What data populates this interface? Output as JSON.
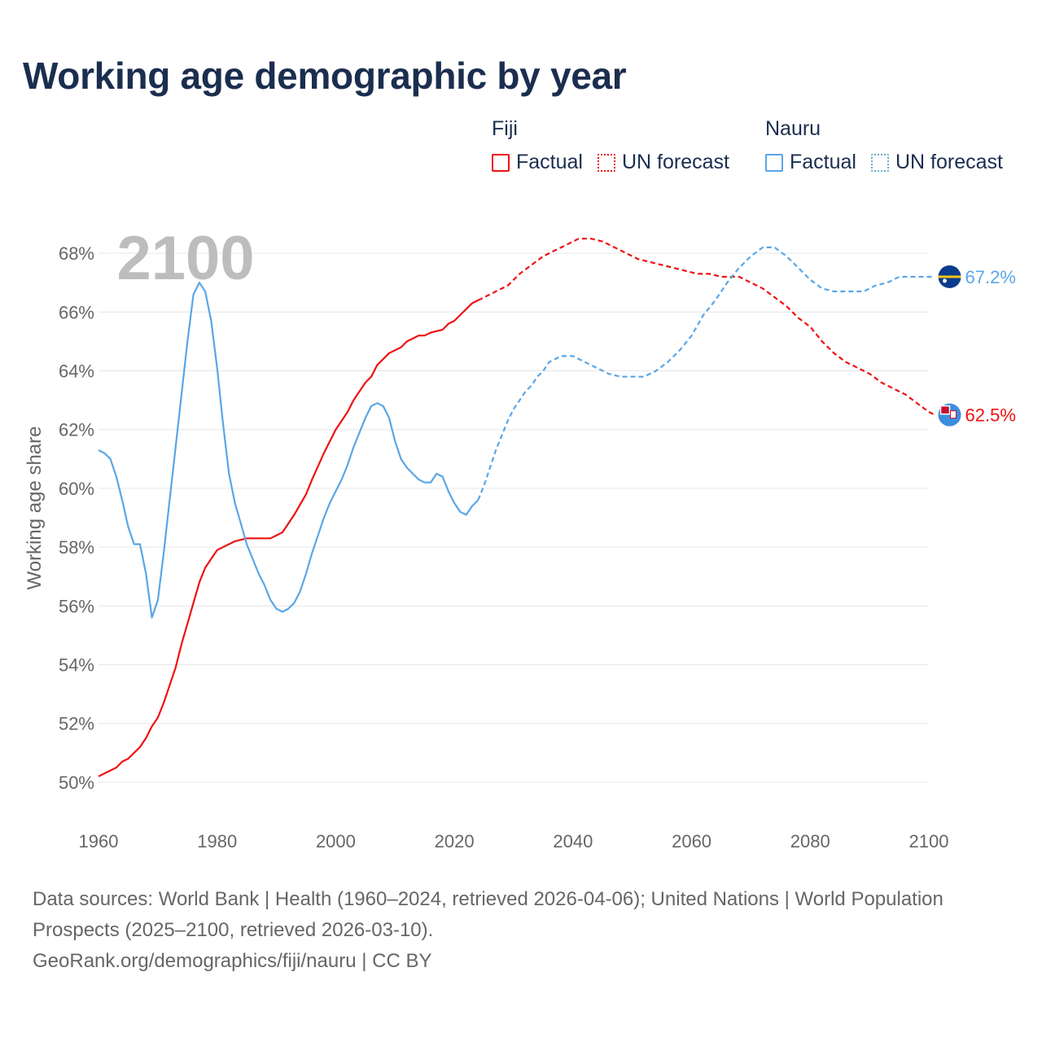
{
  "title": "Working age demographic by year",
  "colors": {
    "fiji": "#ee1111",
    "nauru": "#5aa6e6",
    "nauru_forecast_swatch": "#69aac8",
    "title": "#1b2e4f",
    "axis_text": "#666666",
    "grid": "#e6e6e6",
    "year_watermark": "#bdbdbd"
  },
  "legend": {
    "fiji": {
      "name": "Fiji",
      "factual": "Factual",
      "forecast": "UN forecast"
    },
    "nauru": {
      "name": "Nauru",
      "factual": "Factual",
      "forecast": "UN forecast"
    }
  },
  "footer": {
    "line1": "Data sources: World Bank | Health (1960–2024, retrieved 2026-04-06); United Nations | World Population Prospects (2025–2100, retrieved 2026-03-10).",
    "line2": "GeoRank.org/demographics/fiji/nauru | CC BY"
  },
  "chart_data": {
    "type": "line",
    "title": "Working age demographic by year",
    "year_watermark": "2100",
    "xlabel": "",
    "ylabel": "Working age share",
    "xlim": [
      1960,
      2100
    ],
    "ylim": [
      49,
      69
    ],
    "x_ticks": [
      "1960",
      "1980",
      "2000",
      "2020",
      "2040",
      "2060",
      "2080",
      "2100"
    ],
    "y_ticks": [
      "50%",
      "52%",
      "54%",
      "56%",
      "58%",
      "60%",
      "62%",
      "64%",
      "66%",
      "68%"
    ],
    "forecast_start_year": 2024,
    "series": [
      {
        "name": "Fiji",
        "end_label": "62.5%",
        "end_icon": "fiji-flag-icon",
        "points": [
          [
            1960,
            50.2
          ],
          [
            1963,
            50.5
          ],
          [
            1964,
            50.7
          ],
          [
            1965,
            50.8
          ],
          [
            1966,
            51.0
          ],
          [
            1967,
            51.2
          ],
          [
            1968,
            51.5
          ],
          [
            1969,
            51.9
          ],
          [
            1970,
            52.2
          ],
          [
            1971,
            52.7
          ],
          [
            1972,
            53.3
          ],
          [
            1973,
            53.9
          ],
          [
            1974,
            54.7
          ],
          [
            1975,
            55.4
          ],
          [
            1976,
            56.1
          ],
          [
            1977,
            56.8
          ],
          [
            1978,
            57.3
          ],
          [
            1979,
            57.6
          ],
          [
            1980,
            57.9
          ],
          [
            1983,
            58.2
          ],
          [
            1985,
            58.3
          ],
          [
            1989,
            58.3
          ],
          [
            1991,
            58.5
          ],
          [
            1993,
            59.1
          ],
          [
            1995,
            59.8
          ],
          [
            1996,
            60.3
          ],
          [
            1998,
            61.2
          ],
          [
            2000,
            62.0
          ],
          [
            2002,
            62.6
          ],
          [
            2003,
            63.0
          ],
          [
            2005,
            63.6
          ],
          [
            2006,
            63.8
          ],
          [
            2007,
            64.2
          ],
          [
            2008,
            64.4
          ],
          [
            2009,
            64.6
          ],
          [
            2011,
            64.8
          ],
          [
            2012,
            65.0
          ],
          [
            2014,
            65.2
          ],
          [
            2015,
            65.2
          ],
          [
            2016,
            65.3
          ],
          [
            2018,
            65.4
          ],
          [
            2019,
            65.6
          ],
          [
            2020,
            65.7
          ],
          [
            2021,
            65.9
          ],
          [
            2022,
            66.1
          ],
          [
            2023,
            66.3
          ],
          [
            2024,
            66.4
          ],
          [
            2025,
            66.5
          ],
          [
            2027,
            66.7
          ],
          [
            2029,
            66.9
          ],
          [
            2031,
            67.3
          ],
          [
            2033,
            67.6
          ],
          [
            2035,
            67.9
          ],
          [
            2037,
            68.1
          ],
          [
            2039,
            68.3
          ],
          [
            2041,
            68.5
          ],
          [
            2043,
            68.5
          ],
          [
            2045,
            68.4
          ],
          [
            2047,
            68.2
          ],
          [
            2049,
            68.0
          ],
          [
            2051,
            67.8
          ],
          [
            2053,
            67.7
          ],
          [
            2055,
            67.6
          ],
          [
            2057,
            67.5
          ],
          [
            2059,
            67.4
          ],
          [
            2061,
            67.3
          ],
          [
            2063,
            67.3
          ],
          [
            2065,
            67.2
          ],
          [
            2068,
            67.2
          ],
          [
            2070,
            67.0
          ],
          [
            2072,
            66.8
          ],
          [
            2074,
            66.5
          ],
          [
            2076,
            66.2
          ],
          [
            2078,
            65.8
          ],
          [
            2080,
            65.5
          ],
          [
            2082,
            65.0
          ],
          [
            2084,
            64.6
          ],
          [
            2086,
            64.3
          ],
          [
            2088,
            64.1
          ],
          [
            2090,
            63.9
          ],
          [
            2092,
            63.6
          ],
          [
            2094,
            63.4
          ],
          [
            2096,
            63.2
          ],
          [
            2098,
            62.9
          ],
          [
            2100,
            62.6
          ],
          [
            2101,
            62.5
          ]
        ]
      },
      {
        "name": "Nauru",
        "end_label": "67.2%",
        "end_icon": "nauru-flag-icon",
        "points": [
          [
            1960,
            61.3
          ],
          [
            1961,
            61.2
          ],
          [
            1962,
            61.0
          ],
          [
            1963,
            60.4
          ],
          [
            1964,
            59.6
          ],
          [
            1965,
            58.7
          ],
          [
            1966,
            58.1
          ],
          [
            1967,
            58.1
          ],
          [
            1968,
            57.1
          ],
          [
            1969,
            55.6
          ],
          [
            1970,
            56.2
          ],
          [
            1971,
            57.8
          ],
          [
            1972,
            59.6
          ],
          [
            1973,
            61.4
          ],
          [
            1974,
            63.2
          ],
          [
            1975,
            65.0
          ],
          [
            1976,
            66.6
          ],
          [
            1977,
            67.0
          ],
          [
            1978,
            66.7
          ],
          [
            1979,
            65.7
          ],
          [
            1980,
            64.1
          ],
          [
            1981,
            62.2
          ],
          [
            1982,
            60.5
          ],
          [
            1983,
            59.5
          ],
          [
            1984,
            58.8
          ],
          [
            1985,
            58.1
          ],
          [
            1986,
            57.6
          ],
          [
            1987,
            57.1
          ],
          [
            1988,
            56.7
          ],
          [
            1989,
            56.2
          ],
          [
            1990,
            55.9
          ],
          [
            1991,
            55.8
          ],
          [
            1992,
            55.9
          ],
          [
            1993,
            56.1
          ],
          [
            1994,
            56.5
          ],
          [
            1995,
            57.1
          ],
          [
            1996,
            57.8
          ],
          [
            1997,
            58.4
          ],
          [
            1998,
            59.0
          ],
          [
            1999,
            59.5
          ],
          [
            2000,
            59.9
          ],
          [
            2001,
            60.3
          ],
          [
            2002,
            60.8
          ],
          [
            2003,
            61.4
          ],
          [
            2004,
            61.9
          ],
          [
            2005,
            62.4
          ],
          [
            2006,
            62.8
          ],
          [
            2007,
            62.9
          ],
          [
            2008,
            62.8
          ],
          [
            2009,
            62.4
          ],
          [
            2010,
            61.6
          ],
          [
            2011,
            61.0
          ],
          [
            2012,
            60.7
          ],
          [
            2013,
            60.5
          ],
          [
            2014,
            60.3
          ],
          [
            2015,
            60.2
          ],
          [
            2016,
            60.2
          ],
          [
            2017,
            60.5
          ],
          [
            2018,
            60.4
          ],
          [
            2019,
            59.9
          ],
          [
            2020,
            59.5
          ],
          [
            2021,
            59.2
          ],
          [
            2022,
            59.1
          ],
          [
            2023,
            59.4
          ],
          [
            2024,
            59.6
          ],
          [
            2025,
            60.1
          ],
          [
            2026,
            60.7
          ],
          [
            2027,
            61.3
          ],
          [
            2028,
            61.8
          ],
          [
            2029,
            62.3
          ],
          [
            2030,
            62.7
          ],
          [
            2031,
            63.0
          ],
          [
            2032,
            63.3
          ],
          [
            2033,
            63.5
          ],
          [
            2034,
            63.8
          ],
          [
            2035,
            64.0
          ],
          [
            2036,
            64.3
          ],
          [
            2037,
            64.4
          ],
          [
            2038,
            64.5
          ],
          [
            2040,
            64.5
          ],
          [
            2042,
            64.3
          ],
          [
            2044,
            64.1
          ],
          [
            2046,
            63.9
          ],
          [
            2048,
            63.8
          ],
          [
            2052,
            63.8
          ],
          [
            2054,
            64.0
          ],
          [
            2056,
            64.3
          ],
          [
            2058,
            64.7
          ],
          [
            2060,
            65.2
          ],
          [
            2062,
            65.9
          ],
          [
            2064,
            66.4
          ],
          [
            2066,
            67.0
          ],
          [
            2068,
            67.5
          ],
          [
            2070,
            67.9
          ],
          [
            2072,
            68.2
          ],
          [
            2074,
            68.2
          ],
          [
            2076,
            67.9
          ],
          [
            2078,
            67.5
          ],
          [
            2080,
            67.1
          ],
          [
            2082,
            66.8
          ],
          [
            2084,
            66.7
          ],
          [
            2089,
            66.7
          ],
          [
            2091,
            66.9
          ],
          [
            2093,
            67.0
          ],
          [
            2095,
            67.2
          ],
          [
            2100,
            67.2
          ],
          [
            2101,
            67.2
          ]
        ]
      }
    ]
  }
}
